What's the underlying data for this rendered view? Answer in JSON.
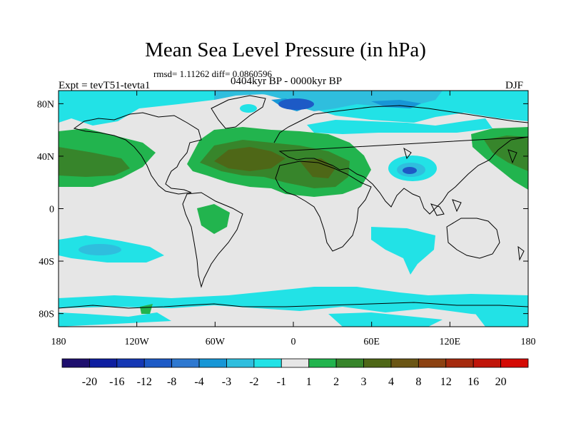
{
  "chart_data": {
    "type": "heatmap",
    "title": "Mean Sea Level Pressure (in hPa)",
    "stats": "rmsd= 1.11262 diff= 0.0860596",
    "period": "0404kyr BP - 0000kyr BP",
    "left_label": "Expt = tevT51-tevta1",
    "right_label": "DJF",
    "projection": "cylindrical-equidistant",
    "x_range": [
      -180,
      180
    ],
    "y_range": [
      -90,
      90
    ],
    "x_ticks": [
      {
        "value": -180,
        "label": "180"
      },
      {
        "value": -120,
        "label": "120W"
      },
      {
        "value": -60,
        "label": "60W"
      },
      {
        "value": 0,
        "label": "0"
      },
      {
        "value": 60,
        "label": "60E"
      },
      {
        "value": 120,
        "label": "120E"
      },
      {
        "value": 180,
        "label": "180"
      }
    ],
    "y_ticks": [
      {
        "value": 80,
        "label": "80N"
      },
      {
        "value": 40,
        "label": "40N"
      },
      {
        "value": 0,
        "label": "0"
      },
      {
        "value": -40,
        "label": "40S"
      },
      {
        "value": -80,
        "label": "80S"
      }
    ],
    "colorbar": {
      "colors": [
        "#1e0f6e",
        "#0e1ea0",
        "#1538b4",
        "#1d5ac6",
        "#2e78d0",
        "#1796d6",
        "#2fbede",
        "#22e2e6",
        "#e6e6e6",
        "#22b44e",
        "#37852b",
        "#4e6717",
        "#6b5615",
        "#8c4212",
        "#a52a0e",
        "#c0150a",
        "#d40a04"
      ],
      "labels": [
        "-20",
        "-16",
        "-12",
        "-8",
        "-4",
        "-3",
        "-2",
        "-1",
        "1",
        "2",
        "3",
        "4",
        "8",
        "12",
        "16",
        "20"
      ]
    },
    "anomaly_regions": [
      {
        "level": "-1 to -2",
        "area": "Arctic / northern Eurasia"
      },
      {
        "level": "-2 to -4",
        "area": "Greenland Sea and Barents Sea"
      },
      {
        "level": "-3 to -4",
        "area": "Tibetan Plateau"
      },
      {
        "level": "-1 to -2",
        "area": "Southern Ocean band"
      },
      {
        "level": "+1 to +2",
        "area": "North Pacific"
      },
      {
        "level": "+2 to +3",
        "area": "North Atlantic / Sahara / Mediterranean"
      },
      {
        "level": "+1 to +2",
        "area": "Central South America"
      }
    ]
  }
}
